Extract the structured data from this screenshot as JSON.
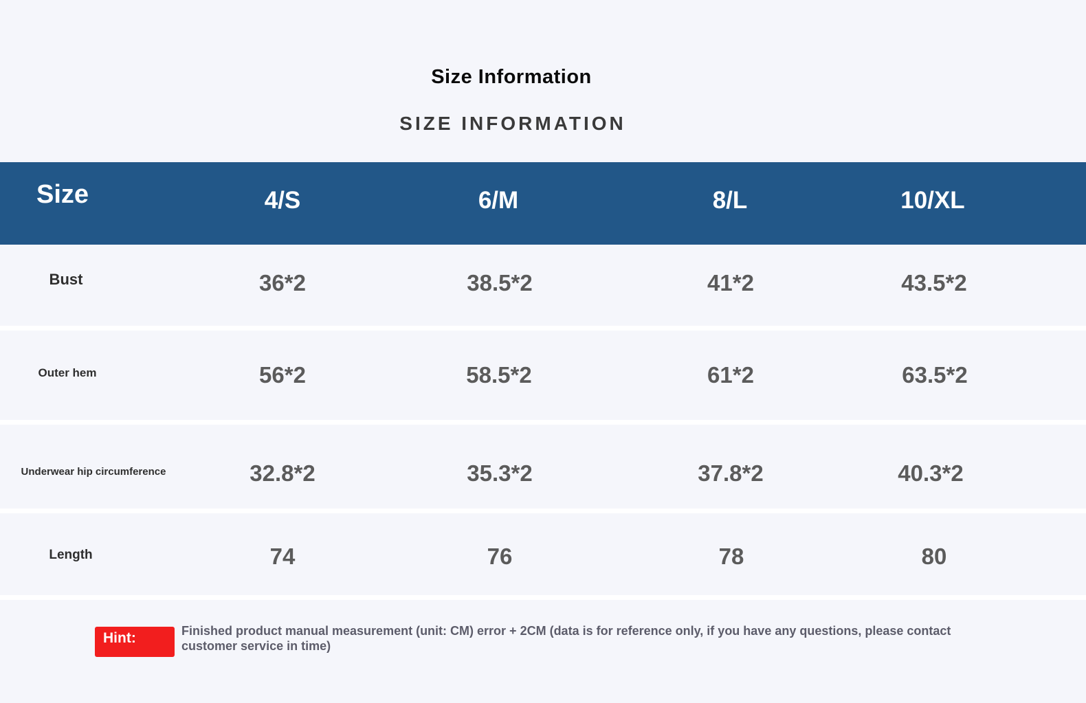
{
  "header": {
    "title": "Size Information",
    "subtitle": "SIZE INFORMATION"
  },
  "table": {
    "corner_label": "Size",
    "columns": [
      "4/S",
      "6/M",
      "8/L",
      "10/XL"
    ],
    "rows": [
      {
        "label": "Bust",
        "values": [
          "36*2",
          "38.5*2",
          "41*2",
          "43.5*2"
        ]
      },
      {
        "label": "Outer hem",
        "values": [
          "56*2",
          "58.5*2",
          "61*2",
          "63.5*2"
        ]
      },
      {
        "label": "Underwear hip circumference",
        "values": [
          "32.8*2",
          "35.3*2",
          "37.8*2",
          "40.3*2"
        ]
      },
      {
        "label": "Length",
        "values": [
          "74",
          "76",
          "78",
          "80"
        ]
      }
    ]
  },
  "hint": {
    "label": "Hint:",
    "text": "Finished product manual measurement (unit: CM) error + 2CM (data is for reference only, if you have any questions, please contact customer service in time)"
  },
  "colors": {
    "header_band": "#225788",
    "hint_badge": "#f21e1e",
    "background": "#f5f6fb"
  }
}
